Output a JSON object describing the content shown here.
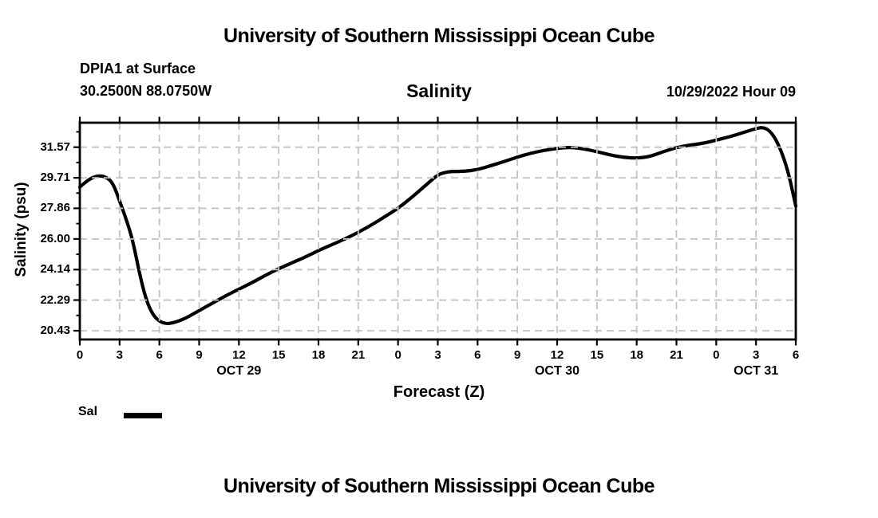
{
  "page": {
    "top_title": "University of Southern Mississippi Ocean Cube",
    "bottom_title": "University of Southern Mississippi Ocean Cube"
  },
  "header": {
    "station": "DPIA1 at Surface",
    "coordinates": "30.2500N  88.0750W",
    "variable_title": "Salinity",
    "run_time": "10/29/2022 Hour 09"
  },
  "colors": {
    "background": "#ffffff",
    "text": "#000000",
    "line": "#000000",
    "grid": "#c2c2c2",
    "axis": "#000000"
  },
  "chart_data": {
    "type": "line",
    "title": "Salinity",
    "xlabel": "Forecast (Z)",
    "ylabel": "Salinity (psu)",
    "grid": true,
    "x_range_hours": [
      0,
      54
    ],
    "y_range": [
      19.9,
      33.05
    ],
    "x_tick_step_hours": 3,
    "x_tick_labels": [
      "0",
      "3",
      "6",
      "9",
      "12",
      "15",
      "18",
      "21",
      "0",
      "3",
      "6",
      "9",
      "12",
      "15",
      "18",
      "21",
      "0",
      "3",
      "6"
    ],
    "x_day_labels": [
      {
        "label": "OCT 29",
        "hour": 12
      },
      {
        "label": "OCT 30",
        "hour": 36
      },
      {
        "label": "OCT 31",
        "hour": 51
      }
    ],
    "y_ticks": [
      20.43,
      22.29,
      24.14,
      26.0,
      27.86,
      29.71,
      31.57
    ],
    "y_tick_labels": [
      "20.43",
      "22.29",
      "24.14",
      "26.00",
      "27.86",
      "29.71",
      "31.57"
    ],
    "y_minor_ticks": [
      21.36,
      23.215,
      25.07,
      26.93,
      28.785,
      30.64,
      32.5
    ],
    "legend": [
      {
        "name": "Sal",
        "color": "#000000"
      }
    ],
    "series": [
      {
        "name": "Sal",
        "units": "psu",
        "points": [
          [
            0,
            29.15
          ],
          [
            0.5,
            29.5
          ],
          [
            1,
            29.75
          ],
          [
            1.5,
            29.85
          ],
          [
            2,
            29.75
          ],
          [
            2.5,
            29.4
          ],
          [
            3,
            28.3
          ],
          [
            3.5,
            27.2
          ],
          [
            4,
            25.9
          ],
          [
            4.5,
            23.9
          ],
          [
            5,
            22.3
          ],
          [
            5.5,
            21.4
          ],
          [
            6,
            21.0
          ],
          [
            6.5,
            20.85
          ],
          [
            7,
            20.9
          ],
          [
            7.5,
            21.03
          ],
          [
            8,
            21.2
          ],
          [
            9,
            21.65
          ],
          [
            10,
            22.1
          ],
          [
            11,
            22.55
          ],
          [
            12,
            22.95
          ],
          [
            13,
            23.35
          ],
          [
            14,
            23.8
          ],
          [
            15,
            24.2
          ],
          [
            16,
            24.55
          ],
          [
            17,
            24.9
          ],
          [
            18,
            25.3
          ],
          [
            19,
            25.65
          ],
          [
            20,
            26.0
          ],
          [
            21,
            26.4
          ],
          [
            22,
            26.85
          ],
          [
            23,
            27.35
          ],
          [
            24,
            27.86
          ],
          [
            25,
            28.5
          ],
          [
            26,
            29.2
          ],
          [
            27,
            29.9
          ],
          [
            27.5,
            30.03
          ],
          [
            28,
            30.1
          ],
          [
            29,
            30.1
          ],
          [
            30,
            30.2
          ],
          [
            31,
            30.45
          ],
          [
            32,
            30.7
          ],
          [
            33,
            30.97
          ],
          [
            34,
            31.2
          ],
          [
            35,
            31.38
          ],
          [
            36,
            31.5
          ],
          [
            37,
            31.57
          ],
          [
            38,
            31.47
          ],
          [
            39,
            31.3
          ],
          [
            40,
            31.1
          ],
          [
            41,
            30.95
          ],
          [
            42,
            30.9
          ],
          [
            43,
            31.0
          ],
          [
            44,
            31.3
          ],
          [
            45,
            31.55
          ],
          [
            46,
            31.7
          ],
          [
            47,
            31.8
          ],
          [
            48,
            32.0
          ],
          [
            49,
            32.2
          ],
          [
            50,
            32.45
          ],
          [
            51,
            32.7
          ],
          [
            51.5,
            32.78
          ],
          [
            52,
            32.6
          ],
          [
            52.5,
            32.05
          ],
          [
            53,
            31.15
          ],
          [
            53.5,
            29.85
          ],
          [
            54,
            28.0
          ]
        ]
      }
    ]
  }
}
